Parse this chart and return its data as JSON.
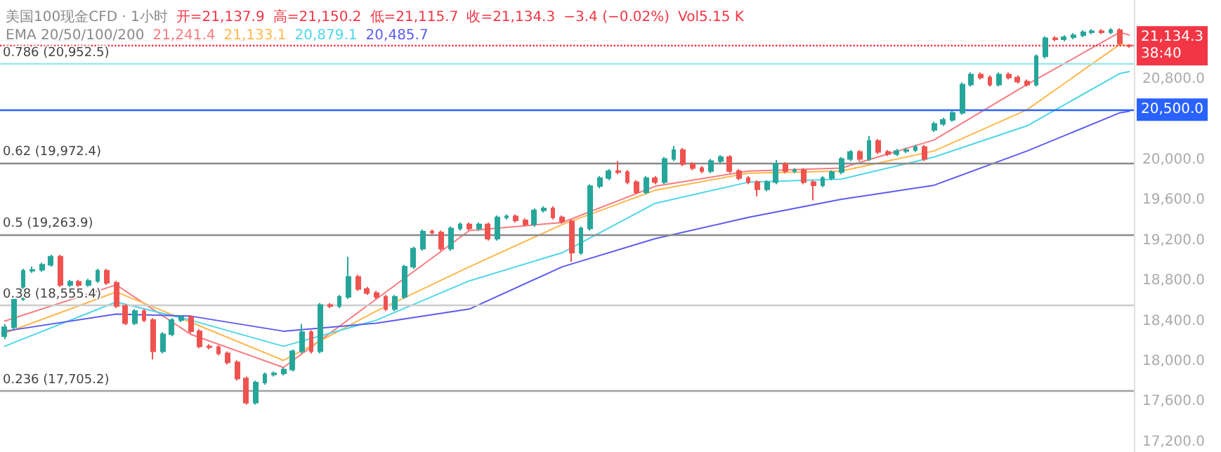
{
  "chart_data": {
    "type": "candlestick",
    "title": "美国100现金CFD · 1小时",
    "legend_title": "EMA 20/50/100/200",
    "annotations": [
      "开=21,137.9",
      "高=21,150.2",
      "低=21,115.7",
      "收=21,134.3",
      "−3.4 (−0.02%)",
      "Vol5.15 K"
    ],
    "categories": [
      null,
      null,
      null,
      null,
      null,
      null,
      null,
      null,
      null,
      null,
      null,
      null,
      null,
      null,
      null,
      null,
      null,
      null,
      null,
      null,
      null,
      null,
      null,
      null,
      null,
      null,
      null,
      null,
      null,
      null,
      null,
      null,
      null,
      null,
      null,
      null,
      null,
      null,
      null,
      null,
      null,
      null,
      null,
      null,
      null,
      null,
      null,
      null,
      null,
      null,
      null,
      null,
      null,
      null,
      null,
      null,
      null,
      null,
      null,
      null,
      null,
      null,
      null,
      null,
      null,
      null,
      null,
      null,
      null,
      null,
      null,
      null,
      null,
      null,
      null,
      null,
      null,
      null,
      null,
      null,
      null,
      null,
      null,
      null,
      null,
      null,
      null,
      null,
      null,
      null,
      null,
      null,
      null,
      null,
      null,
      null,
      null,
      null,
      null,
      null,
      null,
      null,
      null,
      null,
      null,
      null,
      null,
      null,
      null,
      null,
      null,
      null,
      null,
      null,
      null,
      null,
      null,
      null,
      null,
      null,
      null,
      null
    ],
    "series": [
      {
        "ohlc": [
          [
            18250,
            18370,
            18220,
            18340
          ],
          [
            18340,
            18640,
            18320,
            18620
          ],
          [
            18620,
            18920,
            18600,
            18900
          ],
          [
            18900,
            18940,
            18880,
            18910
          ],
          [
            18910,
            18980,
            18890,
            18960
          ],
          [
            18960,
            19060,
            18940,
            19040
          ],
          [
            19040,
            19060,
            18740,
            18760
          ],
          [
            18760,
            18810,
            18740,
            18790
          ],
          [
            18790,
            18810,
            18740,
            18760
          ],
          [
            18760,
            18820,
            18740,
            18800
          ],
          [
            18800,
            18920,
            18780,
            18900
          ],
          [
            18900,
            18920,
            18760,
            18780
          ],
          [
            18780,
            18800,
            18530,
            18550
          ],
          [
            18550,
            18570,
            18360,
            18380
          ],
          [
            18380,
            18520,
            18360,
            18500
          ],
          [
            18500,
            18520,
            18390,
            18410
          ],
          [
            18410,
            18430,
            18020,
            18100
          ],
          [
            18100,
            18290,
            18080,
            18270
          ],
          [
            18270,
            18430,
            18250,
            18410
          ],
          [
            18410,
            18460,
            18390,
            18440
          ],
          [
            18440,
            18460,
            18280,
            18300
          ],
          [
            18300,
            18320,
            18130,
            18150
          ],
          [
            18150,
            18170,
            18120,
            18140
          ],
          [
            18140,
            18160,
            18060,
            18080
          ],
          [
            18080,
            18100,
            17970,
            17990
          ],
          [
            17990,
            18010,
            17810,
            17830
          ],
          [
            17830,
            17850,
            17570,
            17590
          ],
          [
            17590,
            17810,
            17570,
            17790
          ],
          [
            17790,
            17890,
            17770,
            17870
          ],
          [
            17870,
            17900,
            17850,
            17880
          ],
          [
            17880,
            17940,
            17860,
            17920
          ],
          [
            17920,
            18120,
            17900,
            18100
          ],
          [
            18100,
            18370,
            18080,
            18290
          ],
          [
            18290,
            18310,
            18080,
            18100
          ],
          [
            18100,
            18580,
            18080,
            18560
          ],
          [
            18560,
            18580,
            18530,
            18550
          ],
          [
            18550,
            18660,
            18530,
            18640
          ],
          [
            18640,
            19040,
            18620,
            18840
          ],
          [
            18840,
            18860,
            18700,
            18720
          ],
          [
            18720,
            18740,
            18660,
            18680
          ],
          [
            18680,
            18700,
            18620,
            18640
          ],
          [
            18640,
            18660,
            18500,
            18520
          ],
          [
            18520,
            18660,
            18500,
            18640
          ],
          [
            18640,
            18960,
            18620,
            18940
          ],
          [
            18940,
            19140,
            18920,
            19120
          ],
          [
            19120,
            19310,
            19100,
            19290
          ],
          [
            19290,
            19310,
            19260,
            19280
          ],
          [
            19280,
            19300,
            19100,
            19120
          ],
          [
            19120,
            19340,
            19100,
            19320
          ],
          [
            19320,
            19380,
            19300,
            19360
          ],
          [
            19360,
            19380,
            19300,
            19320
          ],
          [
            19320,
            19380,
            19300,
            19360
          ],
          [
            19360,
            19380,
            19200,
            19220
          ],
          [
            19220,
            19450,
            19200,
            19430
          ],
          [
            19430,
            19460,
            19410,
            19440
          ],
          [
            19440,
            19460,
            19380,
            19400
          ],
          [
            19400,
            19420,
            19340,
            19360
          ],
          [
            19360,
            19520,
            19340,
            19500
          ],
          [
            19500,
            19540,
            19480,
            19520
          ],
          [
            19520,
            19540,
            19410,
            19430
          ],
          [
            19430,
            19450,
            19370,
            19390
          ],
          [
            19390,
            19410,
            18990,
            19080
          ],
          [
            19080,
            19340,
            19060,
            19320
          ],
          [
            19320,
            19760,
            19300,
            19740
          ],
          [
            19740,
            19840,
            19720,
            19820
          ],
          [
            19820,
            19910,
            19800,
            19890
          ],
          [
            19890,
            19990,
            19860,
            19880
          ],
          [
            19880,
            19900,
            19760,
            19780
          ],
          [
            19780,
            19800,
            19660,
            19680
          ],
          [
            19680,
            19840,
            19660,
            19820
          ],
          [
            19820,
            19840,
            19760,
            19780
          ],
          [
            19780,
            20030,
            19760,
            20010
          ],
          [
            20010,
            20140,
            19990,
            20100
          ],
          [
            20100,
            20120,
            19940,
            19960
          ],
          [
            19960,
            19980,
            19900,
            19920
          ],
          [
            19920,
            19940,
            19870,
            19890
          ],
          [
            19890,
            20010,
            19870,
            19990
          ],
          [
            19990,
            20050,
            19970,
            20030
          ],
          [
            20030,
            20050,
            19870,
            19890
          ],
          [
            19890,
            19910,
            19800,
            19820
          ],
          [
            19820,
            19840,
            19760,
            19780
          ],
          [
            19780,
            19800,
            19640,
            19710
          ],
          [
            19710,
            19800,
            19690,
            19780
          ],
          [
            19780,
            20000,
            19760,
            19960
          ],
          [
            19960,
            19980,
            19870,
            19890
          ],
          [
            19890,
            19920,
            19870,
            19900
          ],
          [
            19900,
            19920,
            19760,
            19780
          ],
          [
            19780,
            19800,
            19600,
            19750
          ],
          [
            19750,
            19840,
            19730,
            19820
          ],
          [
            19820,
            19900,
            19800,
            19880
          ],
          [
            19880,
            20030,
            19860,
            20010
          ],
          [
            20010,
            20100,
            19990,
            20080
          ],
          [
            20080,
            20100,
            19990,
            20010
          ],
          [
            20010,
            20240,
            19990,
            20190
          ],
          [
            20190,
            20210,
            20060,
            20080
          ],
          [
            20080,
            20100,
            20040,
            20060
          ],
          [
            20060,
            20110,
            20040,
            20090
          ],
          [
            20090,
            20120,
            20070,
            20100
          ],
          [
            20100,
            20150,
            20080,
            20130
          ],
          [
            20130,
            20150,
            19990,
            20010
          ],
          [
            20300,
            20380,
            20280,
            20360
          ],
          [
            20360,
            20420,
            20340,
            20400
          ],
          [
            20400,
            20490,
            20380,
            20470
          ],
          [
            20470,
            20770,
            20450,
            20750
          ],
          [
            20750,
            20870,
            20730,
            20850
          ],
          [
            20850,
            20870,
            20800,
            20820
          ],
          [
            20820,
            20840,
            20730,
            20750
          ],
          [
            20750,
            20870,
            20730,
            20850
          ],
          [
            20850,
            20870,
            20800,
            20820
          ],
          [
            20820,
            20840,
            20760,
            20780
          ],
          [
            20780,
            20800,
            20730,
            20750
          ],
          [
            20750,
            21050,
            20730,
            21030
          ],
          [
            21030,
            21230,
            21010,
            21210
          ],
          [
            21210,
            21230,
            21180,
            21200
          ],
          [
            21200,
            21240,
            21180,
            21220
          ],
          [
            21220,
            21260,
            21200,
            21240
          ],
          [
            21240,
            21290,
            21220,
            21270
          ],
          [
            21270,
            21300,
            21250,
            21280
          ],
          [
            21280,
            21300,
            21250,
            21270
          ],
          [
            21270,
            21310,
            21250,
            21290
          ],
          [
            21290,
            21310,
            21140,
            21160
          ],
          [
            21137.9,
            21150.2,
            21115.7,
            21134.3
          ]
        ],
        "colors": [
          "#26a69a",
          "#26a69a",
          "#26a69a",
          "#26a69a",
          "#26a69a",
          "#26a69a",
          "#ef5350",
          "#26a69a",
          "#ef5350",
          "#26a69a",
          "#26a69a",
          "#ef5350",
          "#ef5350",
          "#ef5350",
          "#26a69a",
          "#ef5350",
          "#ef5350",
          "#26a69a",
          "#26a69a",
          "#26a69a",
          "#ef5350",
          "#ef5350",
          "#ef5350",
          "#ef5350",
          "#ef5350",
          "#ef5350",
          "#ef5350",
          "#26a69a",
          "#26a69a",
          "#26a69a",
          "#26a69a",
          "#26a69a",
          "#26a69a",
          "#ef5350",
          "#26a69a",
          "#ef5350",
          "#26a69a",
          "#26a69a",
          "#ef5350",
          "#ef5350",
          "#ef5350",
          "#ef5350",
          "#26a69a",
          "#26a69a",
          "#26a69a",
          "#26a69a",
          "#ef5350",
          "#ef5350",
          "#26a69a",
          "#26a69a",
          "#ef5350",
          "#26a69a",
          "#ef5350",
          "#26a69a",
          "#26a69a",
          "#ef5350",
          "#ef5350",
          "#26a69a",
          "#26a69a",
          "#ef5350",
          "#ef5350",
          "#ef5350",
          "#26a69a",
          "#26a69a",
          "#26a69a",
          "#26a69a",
          "#ef5350",
          "#ef5350",
          "#ef5350",
          "#26a69a",
          "#ef5350",
          "#26a69a",
          "#26a69a",
          "#ef5350",
          "#ef5350",
          "#ef5350",
          "#26a69a",
          "#26a69a",
          "#ef5350",
          "#ef5350",
          "#ef5350",
          "#ef5350",
          "#26a69a",
          "#26a69a",
          "#ef5350",
          "#26a69a",
          "#ef5350",
          "#ef5350",
          "#26a69a",
          "#26a69a",
          "#26a69a",
          "#26a69a",
          "#ef5350",
          "#26a69a",
          "#ef5350",
          "#ef5350",
          "#26a69a",
          "#26a69a",
          "#26a69a",
          "#ef5350",
          "#26a69a",
          "#26a69a",
          "#26a69a",
          "#26a69a",
          "#26a69a",
          "#ef5350",
          "#ef5350",
          "#26a69a",
          "#ef5350",
          "#ef5350",
          "#ef5350",
          "#26a69a",
          "#26a69a",
          "#ef5350",
          "#26a69a",
          "#26a69a",
          "#26a69a",
          "#26a69a",
          "#ef5350",
          "#26a69a",
          "#ef5350",
          "#ef5350"
        ]
      },
      {
        "type": "line",
        "name": "21,241.4",
        "color": "#f77c80",
        "values": [
          18400,
          null,
          null,
          null,
          null,
          null,
          null,
          null,
          null,
          null,
          null,
          null,
          18760,
          null,
          null,
          null,
          null,
          null,
          null,
          null,
          18270,
          null,
          null,
          null,
          null,
          null,
          null,
          null,
          null,
          null,
          17940,
          null,
          null,
          null,
          null,
          null,
          null,
          null,
          null,
          null,
          18620,
          null,
          null,
          null,
          null,
          null,
          null,
          null,
          null,
          null,
          19300,
          null,
          null,
          null,
          null,
          null,
          null,
          null,
          null,
          null,
          19380,
          null,
          null,
          null,
          null,
          null,
          null,
          null,
          null,
          null,
          19740,
          null,
          null,
          null,
          null,
          null,
          null,
          null,
          null,
          null,
          19890,
          null,
          null,
          null,
          null,
          null,
          null,
          null,
          null,
          null,
          19920,
          null,
          null,
          null,
          null,
          null,
          null,
          null,
          null,
          null,
          20200,
          null,
          null,
          null,
          null,
          null,
          null,
          null,
          null,
          null,
          20750,
          null,
          null,
          null,
          null,
          null,
          null,
          null,
          null,
          null,
          21270,
          21241.4
        ]
      },
      {
        "type": "line",
        "name": "21,133.1",
        "color": "#ffb74d",
        "values": [
          18280,
          null,
          null,
          null,
          null,
          null,
          null,
          null,
          null,
          null,
          null,
          null,
          18690,
          null,
          null,
          null,
          null,
          null,
          null,
          null,
          18390,
          null,
          null,
          null,
          null,
          null,
          null,
          null,
          null,
          null,
          18010,
          null,
          null,
          null,
          null,
          null,
          null,
          null,
          null,
          null,
          18500,
          null,
          null,
          null,
          null,
          null,
          null,
          null,
          null,
          null,
          18940,
          null,
          null,
          null,
          null,
          null,
          null,
          null,
          null,
          null,
          19360,
          null,
          null,
          null,
          null,
          null,
          null,
          null,
          null,
          null,
          19700,
          null,
          null,
          null,
          null,
          null,
          null,
          null,
          null,
          null,
          19870,
          null,
          null,
          null,
          null,
          null,
          null,
          null,
          null,
          null,
          19890,
          null,
          null,
          null,
          null,
          null,
          null,
          null,
          null,
          null,
          20090,
          null,
          null,
          null,
          null,
          null,
          null,
          null,
          null,
          null,
          20500,
          null,
          null,
          null,
          null,
          null,
          null,
          null,
          null,
          null,
          21150,
          21133.1
        ]
      },
      {
        "type": "line",
        "name": "20,879.1",
        "color": "#4fd6e8",
        "values": [
          18150,
          null,
          null,
          null,
          null,
          null,
          null,
          null,
          null,
          null,
          null,
          null,
          18590,
          null,
          null,
          null,
          null,
          null,
          null,
          null,
          18410,
          null,
          null,
          null,
          null,
          null,
          null,
          null,
          null,
          null,
          18150,
          null,
          null,
          null,
          null,
          null,
          null,
          null,
          null,
          null,
          18410,
          null,
          null,
          null,
          null,
          null,
          null,
          null,
          null,
          null,
          18800,
          null,
          null,
          null,
          null,
          null,
          null,
          null,
          null,
          null,
          19080,
          null,
          null,
          null,
          null,
          null,
          null,
          null,
          null,
          null,
          19570,
          null,
          null,
          null,
          null,
          null,
          null,
          null,
          null,
          null,
          19780,
          null,
          null,
          null,
          null,
          null,
          null,
          null,
          null,
          null,
          19810,
          null,
          null,
          null,
          null,
          null,
          null,
          null,
          null,
          null,
          20030,
          null,
          null,
          null,
          null,
          null,
          null,
          null,
          null,
          null,
          20340,
          null,
          null,
          null,
          null,
          null,
          null,
          null,
          null,
          null,
          20860,
          20879.1
        ]
      },
      {
        "type": "line",
        "name": "20,485.7",
        "color": "#5c5cf0",
        "values": [
          18300,
          null,
          null,
          null,
          null,
          null,
          null,
          null,
          null,
          null,
          null,
          null,
          18470,
          null,
          null,
          null,
          null,
          null,
          null,
          null,
          18450,
          null,
          null,
          null,
          null,
          null,
          null,
          null,
          null,
          null,
          18300,
          null,
          null,
          null,
          null,
          null,
          null,
          null,
          null,
          null,
          18380,
          null,
          null,
          null,
          null,
          null,
          null,
          null,
          null,
          null,
          18520,
          null,
          null,
          null,
          null,
          null,
          null,
          null,
          null,
          null,
          18940,
          null,
          null,
          null,
          null,
          null,
          null,
          null,
          null,
          null,
          19220,
          null,
          null,
          null,
          null,
          null,
          null,
          null,
          null,
          null,
          19430,
          null,
          null,
          null,
          null,
          null,
          null,
          null,
          null,
          null,
          19610,
          null,
          null,
          null,
          null,
          null,
          null,
          null,
          null,
          null,
          19750,
          null,
          null,
          null,
          null,
          null,
          null,
          null,
          null,
          null,
          20090,
          null,
          null,
          null,
          null,
          null,
          null,
          null,
          null,
          null,
          20470,
          20485.7
        ]
      }
    ],
    "ylim": [
      17100,
      21590
    ],
    "yticks": [
      {
        "value": 17200,
        "label": "17,200.0"
      },
      {
        "value": 17600,
        "label": "17,600.0"
      },
      {
        "value": 18000,
        "label": "18,000.0"
      },
      {
        "value": 18400,
        "label": "18,400.0"
      },
      {
        "value": 18800,
        "label": "18,800.0"
      },
      {
        "value": 19200,
        "label": "19,200.0"
      },
      {
        "value": 19600,
        "label": "19,600.0"
      },
      {
        "value": 20000,
        "label": "20,000.0"
      },
      {
        "value": 20800,
        "label": "20,800.0"
      }
    ],
    "tick_labels": "y",
    "marker": "none",
    "ref_lines": [
      {
        "axis": "y",
        "value": 20952.5,
        "label": "0.786 (20,952.5)",
        "color": "#9ee6ef",
        "line_style": "solid"
      },
      {
        "axis": "y",
        "value": 19972.4,
        "label": "0.62 (19,972.4)",
        "color": "#8a8a8a",
        "line_style": "solid"
      },
      {
        "axis": "y",
        "value": 19263.9,
        "label": "0.5 (19,263.9)",
        "color": "#8a8a8a",
        "line_style": "solid"
      },
      {
        "axis": "y",
        "value": 18555.4,
        "label": "0.38 (18,555.4)",
        "color": "#cccccc",
        "line_style": "solid"
      },
      {
        "axis": "y",
        "value": 17705.2,
        "label": "0.236 (17,705.2)",
        "color": "#a0a0a0",
        "line_style": "solid"
      },
      {
        "axis": "y",
        "value": 20500,
        "label": "20,500.0",
        "color": "#2962ff",
        "line_style": "solid"
      },
      {
        "axis": "y",
        "value": 21134.3,
        "label": "21,134.3\n38:40",
        "color": "#f23645",
        "line_style": "dotted"
      }
    ]
  }
}
